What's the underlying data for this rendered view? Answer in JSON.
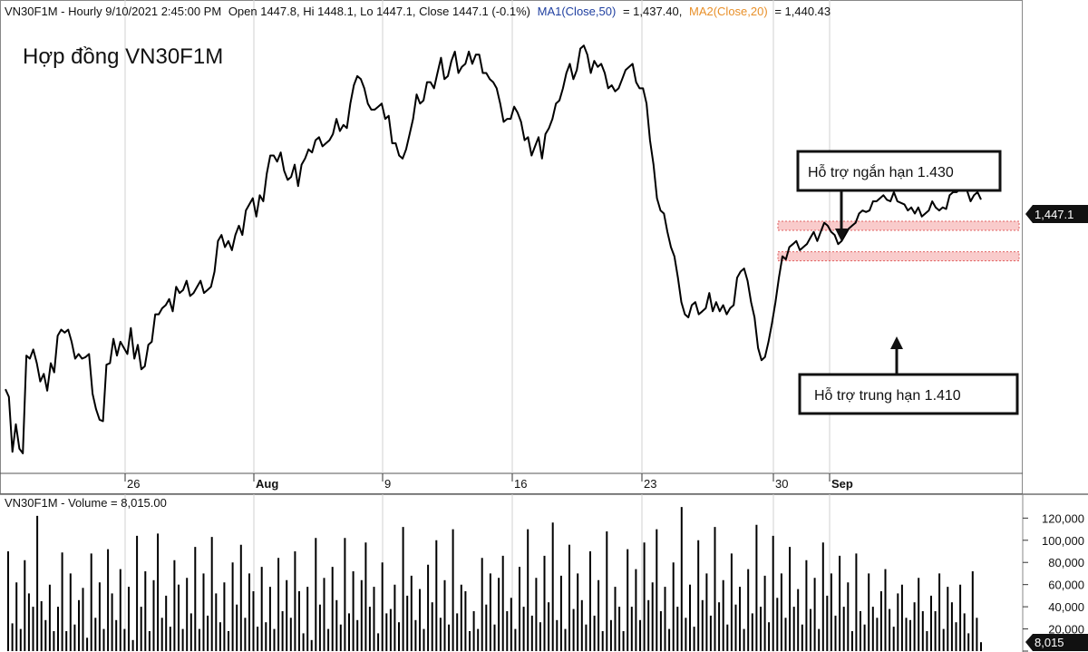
{
  "header": {
    "symbol_interval": "VN30F1M - Hourly 9/10/2021 2:45:00 PM",
    "ohlc": "Open 1447.8, Hi 1448.1, Lo 1447.1, Close 1447.1 (-0.1%)",
    "ma1_label": "MA1(Close,50)",
    "ma1_value": "= 1,437.40,",
    "ma2_label": "MA2(Close,20)",
    "ma2_value": "= 1,440.43",
    "ma1_color": "#1f3fa0",
    "ma2_color": "#e8902a"
  },
  "chart_title": "Hợp đồng VN30F1M",
  "annotations": {
    "short_support": "Hỗ trợ ngắn hạn 1.430",
    "mid_support": "Hỗ trợ trung  hạn 1.410",
    "band_color": "#f4a0a0"
  },
  "price_badge": "1,447.1",
  "volume_header": "VN30F1M - Volume = 8,015.00",
  "volume_badge": "8,015",
  "chart_data": [
    {
      "type": "line",
      "series": [
        {
          "values": [
            1323,
            1318,
            1282,
            1300,
            1284,
            1281,
            1345,
            1343,
            1349,
            1340,
            1328,
            1333,
            1322,
            1340,
            1334,
            1358,
            1362,
            1360,
            1362,
            1354,
            1343,
            1346,
            1343,
            1344,
            1346,
            1320,
            1310,
            1303,
            1302,
            1339,
            1340,
            1356,
            1345,
            1354,
            1350,
            1346,
            1363,
            1343,
            1352,
            1336,
            1338,
            1352,
            1354,
            1372,
            1372,
            1376,
            1378,
            1382,
            1374,
            1390,
            1386,
            1388,
            1394,
            1384,
            1386,
            1390,
            1394,
            1386,
            1388,
            1390,
            1400,
            1420,
            1424,
            1416,
            1420,
            1414,
            1424,
            1430,
            1424,
            1440,
            1444,
            1448,
            1436,
            1450,
            1446,
            1464,
            1476,
            1476,
            1472,
            1478,
            1466,
            1460,
            1462,
            1470,
            1456,
            1470,
            1474,
            1480,
            1478,
            1486,
            1488,
            1482,
            1484,
            1486,
            1490,
            1500,
            1492,
            1496,
            1494,
            1510,
            1522,
            1528,
            1526,
            1520,
            1510,
            1506,
            1506,
            1508,
            1510,
            1500,
            1502,
            1484,
            1484,
            1476,
            1474,
            1480,
            1490,
            1500,
            1516,
            1510,
            1512,
            1524,
            1524,
            1520,
            1530,
            1540,
            1526,
            1528,
            1538,
            1544,
            1530,
            1534,
            1536,
            1544,
            1536,
            1542,
            1542,
            1530,
            1530,
            1526,
            1524,
            1520,
            1510,
            1498,
            1500,
            1500,
            1508,
            1504,
            1498,
            1486,
            1488,
            1476,
            1482,
            1488,
            1474,
            1490,
            1494,
            1500,
            1510,
            1512,
            1520,
            1530,
            1536,
            1526,
            1532,
            1546,
            1548,
            1542,
            1530,
            1538,
            1534,
            1536,
            1530,
            1520,
            1522,
            1518,
            1520,
            1526,
            1532,
            1534,
            1536,
            1524,
            1520,
            1520,
            1510,
            1486,
            1470,
            1448,
            1440,
            1438,
            1426,
            1416,
            1410,
            1396,
            1380,
            1372,
            1370,
            1378,
            1380,
            1372,
            1374,
            1376,
            1386,
            1374,
            1380,
            1374,
            1378,
            1372,
            1376,
            1378,
            1396,
            1400,
            1402,
            1394,
            1380,
            1370,
            1350,
            1342,
            1344,
            1354,
            1366,
            1380,
            1396,
            1410,
            1408,
            1416,
            1418,
            1420,
            1414,
            1416,
            1418,
            1422,
            1426,
            1420,
            1426,
            1432,
            1430,
            1426,
            1424,
            1418,
            1420,
            1424,
            1428,
            1430,
            1432,
            1438,
            1440,
            1439,
            1440,
            1446,
            1446,
            1448,
            1450,
            1447,
            1446,
            1452,
            1446,
            1445,
            1444,
            1440,
            1442,
            1438,
            1442,
            1436,
            1438,
            1440,
            1446,
            1442,
            1440,
            1442,
            1441,
            1450,
            1452,
            1452,
            1454,
            1455,
            1453,
            1446,
            1450,
            1452,
            1447.1
          ]
        }
      ],
      "x_labels": [
        "26",
        "Aug",
        "9",
        "16",
        "23",
        "30",
        "Sep"
      ],
      "y_labels": [
        "1,447.1"
      ],
      "support_levels": [
        1430,
        1410
      ],
      "ylim": [
        1275,
        1560
      ],
      "grid": true
    },
    {
      "type": "bar",
      "series": [
        {
          "values": [
            90,
            25,
            62,
            20,
            82,
            52,
            40,
            122,
            45,
            28,
            60,
            18,
            40,
            89,
            18,
            70,
            24,
            46,
            57,
            12,
            88,
            30,
            62,
            20,
            92,
            52,
            28,
            74,
            20,
            58,
            10,
            104,
            40,
            72,
            18,
            64,
            106,
            30,
            50,
            22,
            82,
            60,
            20,
            66,
            34,
            94,
            20,
            70,
            32,
            103,
            52,
            26,
            62,
            18,
            80,
            42,
            96,
            30,
            70,
            54,
            22,
            76,
            26,
            58,
            20,
            84,
            36,
            64,
            30,
            90,
            54,
            16,
            58,
            10,
            102,
            42,
            66,
            20,
            76,
            46,
            24,
            102,
            34,
            72,
            28,
            64,
            98,
            40,
            58,
            16,
            80,
            34,
            38,
            60,
            26,
            112,
            50,
            68,
            28,
            56,
            20,
            78,
            44,
            100,
            30,
            64,
            24,
            110,
            34,
            60,
            54,
            18,
            36,
            20,
            84,
            42,
            70,
            24,
            66,
            86,
            36,
            48,
            20,
            76,
            40,
            110,
            32,
            66,
            26,
            86,
            44,
            116,
            28,
            68,
            20,
            96,
            38,
            70,
            46,
            24,
            90,
            32,
            64,
            18,
            108,
            28,
            58,
            40,
            18,
            92,
            40,
            74,
            28,
            98,
            46,
            62,
            110,
            36,
            58,
            20,
            80,
            40,
            130,
            30,
            60,
            22,
            100,
            46,
            70,
            32,
            112,
            44,
            64,
            24,
            88,
            42,
            58,
            20,
            74,
            34,
            114,
            40,
            68,
            26,
            104,
            48,
            70,
            30,
            94,
            40,
            56,
            24,
            82,
            38,
            66,
            20,
            98,
            50,
            70,
            32,
            86,
            40,
            62,
            18,
            88,
            36,
            24,
            70,
            40,
            30,
            54,
            74,
            38,
            22,
            52,
            60,
            30,
            28,
            44,
            66,
            36,
            18,
            50,
            36,
            70,
            20,
            58,
            44,
            26,
            60,
            34,
            16,
            72,
            30,
            8
          ]
        }
      ],
      "y_labels": [
        "120,000",
        "100,000",
        "80,000",
        "60,000",
        "40,000",
        "20,000",
        "0"
      ],
      "ylim": [
        0,
        135000
      ],
      "grid": true
    }
  ]
}
